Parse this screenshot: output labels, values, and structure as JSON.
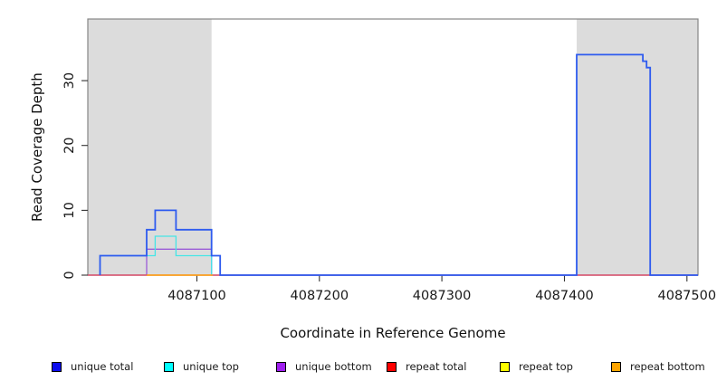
{
  "chart_data": {
    "type": "line",
    "subtype": "step-coverage",
    "title": "",
    "xlabel": "Coordinate in Reference Genome",
    "ylabel": "Read Coverage Depth",
    "xlim": [
      4087011,
      4087509
    ],
    "ylim": [
      0,
      39.5
    ],
    "xticks": [
      4087100,
      4087200,
      4087300,
      4087400,
      4087500
    ],
    "yticks": [
      0,
      10,
      20,
      30
    ],
    "grid": "off",
    "legend_position": "bottom",
    "box_border_color": "#858585",
    "tick_color": "#333333",
    "tick_label_color": "#1a1a1a",
    "repeat_regions": {
      "fill": "#DCDCDC",
      "ranges": [
        [
          4087011,
          4087112
        ],
        [
          4087410,
          4087509
        ]
      ]
    },
    "series": [
      {
        "name": "repeat top",
        "color": "#FFFF00",
        "line_width": 1.2,
        "points": [
          [
            4087059,
            0
          ],
          [
            4087113,
            0
          ]
        ]
      },
      {
        "name": "unique bottom",
        "color": "#9B5BD8",
        "line_width": 1.3,
        "points": [
          [
            4087011,
            0
          ],
          [
            4087059,
            0
          ],
          [
            4087059,
            4
          ],
          [
            4087112,
            4
          ],
          [
            4087112,
            0
          ],
          [
            4087509,
            0
          ]
        ]
      },
      {
        "name": "unique top",
        "color": "#45E6E6",
        "line_width": 1.3,
        "points": [
          [
            4087021,
            0
          ],
          [
            4087021,
            3
          ],
          [
            4087066,
            3
          ],
          [
            4087066,
            6
          ],
          [
            4087083,
            6
          ],
          [
            4087083,
            3
          ],
          [
            4087112,
            3
          ],
          [
            4087112,
            0
          ]
        ]
      },
      {
        "name": "repeat total",
        "color": "#E34556",
        "line_width": 1.3,
        "points": [
          [
            4087011,
            0
          ],
          [
            4087509,
            0
          ]
        ]
      },
      {
        "name": "repeat bottom",
        "color": "#FFA018",
        "line_width": 1.5,
        "points": [
          [
            4087059,
            0
          ],
          [
            4087113,
            0
          ]
        ]
      },
      {
        "name": "unique total",
        "color": "#2E5BEF",
        "line_width": 1.8,
        "points": [
          [
            4087021,
            0
          ],
          [
            4087021,
            3
          ],
          [
            4087059,
            3
          ],
          [
            4087059,
            7
          ],
          [
            4087066,
            7
          ],
          [
            4087066,
            10
          ],
          [
            4087083,
            10
          ],
          [
            4087083,
            7
          ],
          [
            4087112,
            7
          ],
          [
            4087112,
            3
          ],
          [
            4087119,
            3
          ],
          [
            4087119,
            0
          ],
          [
            4087410,
            0
          ],
          [
            4087410,
            34
          ],
          [
            4087464,
            34
          ],
          [
            4087464,
            33
          ],
          [
            4087467,
            33
          ],
          [
            4087467,
            32
          ],
          [
            4087470,
            32
          ],
          [
            4087470,
            0
          ],
          [
            4087509,
            0
          ]
        ]
      }
    ]
  },
  "legend": {
    "items": [
      {
        "label": "unique total",
        "color": "#0D0DEE"
      },
      {
        "label": "unique top",
        "color": "#00FFFF"
      },
      {
        "label": "unique bottom",
        "color": "#A020F0"
      },
      {
        "label": "repeat total",
        "color": "#FF0000"
      },
      {
        "label": "repeat top",
        "color": "#FFFF00"
      },
      {
        "label": "repeat bottom",
        "color": "#FFA500"
      }
    ]
  }
}
